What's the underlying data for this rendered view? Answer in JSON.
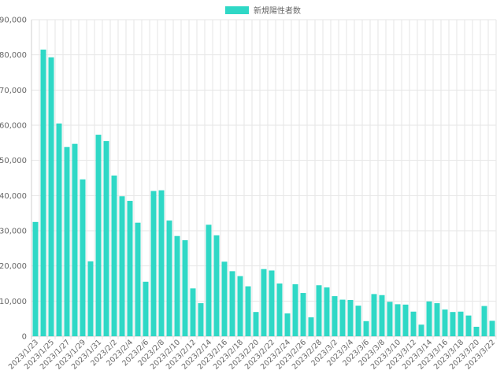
{
  "chart_data": {
    "type": "bar",
    "legend": {
      "label": "新規陽性者数",
      "position": "top-center"
    },
    "color": "#2fd8c6",
    "ylim": [
      0,
      90000
    ],
    "yticks": [
      0,
      10000,
      20000,
      30000,
      40000,
      50000,
      60000,
      70000,
      80000,
      90000
    ],
    "ytick_labels": [
      "0",
      "10,000",
      "20,000",
      "30,000",
      "40,000",
      "50,000",
      "60,000",
      "70,000",
      "80,000",
      "90,000"
    ],
    "grid": true,
    "categories": [
      "2023/1/23",
      "2023/1/24",
      "2023/1/25",
      "2023/1/26",
      "2023/1/27",
      "2023/1/28",
      "2023/1/29",
      "2023/1/30",
      "2023/1/31",
      "2023/2/1",
      "2023/2/2",
      "2023/2/3",
      "2023/2/4",
      "2023/2/5",
      "2023/2/6",
      "2023/2/7",
      "2023/2/8",
      "2023/2/9",
      "2023/2/10",
      "2023/2/11",
      "2023/2/12",
      "2023/2/13",
      "2023/2/14",
      "2023/2/15",
      "2023/2/16",
      "2023/2/17",
      "2023/2/18",
      "2023/2/19",
      "2023/2/20",
      "2023/2/21",
      "2023/2/22",
      "2023/2/23",
      "2023/2/24",
      "2023/2/25",
      "2023/2/26",
      "2023/2/27",
      "2023/2/28",
      "2023/3/1",
      "2023/3/2",
      "2023/3/3",
      "2023/3/4",
      "2023/3/5",
      "2023/3/6",
      "2023/3/7",
      "2023/3/8",
      "2023/3/9",
      "2023/3/10",
      "2023/3/11",
      "2023/3/12",
      "2023/3/13",
      "2023/3/14",
      "2023/3/15",
      "2023/3/16",
      "2023/3/17",
      "2023/3/18",
      "2023/3/19",
      "2023/3/20",
      "2023/3/21",
      "2023/3/22"
    ],
    "values": [
      32500,
      81500,
      79300,
      60500,
      53800,
      54700,
      44600,
      21300,
      57300,
      55500,
      45700,
      39800,
      38500,
      32300,
      15500,
      41300,
      41500,
      32900,
      28500,
      27300,
      13600,
      9400,
      31700,
      28700,
      21200,
      18500,
      17100,
      14200,
      6900,
      19100,
      18700,
      15000,
      6500,
      14800,
      12300,
      5400,
      14500,
      13900,
      11400,
      10400,
      10300,
      8700,
      4300,
      12000,
      11700,
      9800,
      9100,
      9000,
      7000,
      3300,
      9900,
      9400,
      7600,
      6900,
      7000,
      5900,
      2700,
      8600,
      4400
    ],
    "xtick_labels": [
      "2023/1/23",
      "2023/1/25",
      "2023/1/27",
      "2023/1/29",
      "2023/1/31",
      "2023/2/2",
      "2023/2/4",
      "2023/2/6",
      "2023/2/8",
      "2023/2/10",
      "2023/2/12",
      "2023/2/14",
      "2023/2/16",
      "2023/2/18",
      "2023/2/20",
      "2023/2/22",
      "2023/2/24",
      "2023/2/26",
      "2023/2/28",
      "2023/3/2",
      "2023/3/4",
      "2023/3/6",
      "2023/3/8",
      "2023/3/10",
      "2023/3/12",
      "2023/3/14",
      "2023/3/16",
      "2023/3/18",
      "2023/3/20",
      "2023/3/22"
    ]
  }
}
